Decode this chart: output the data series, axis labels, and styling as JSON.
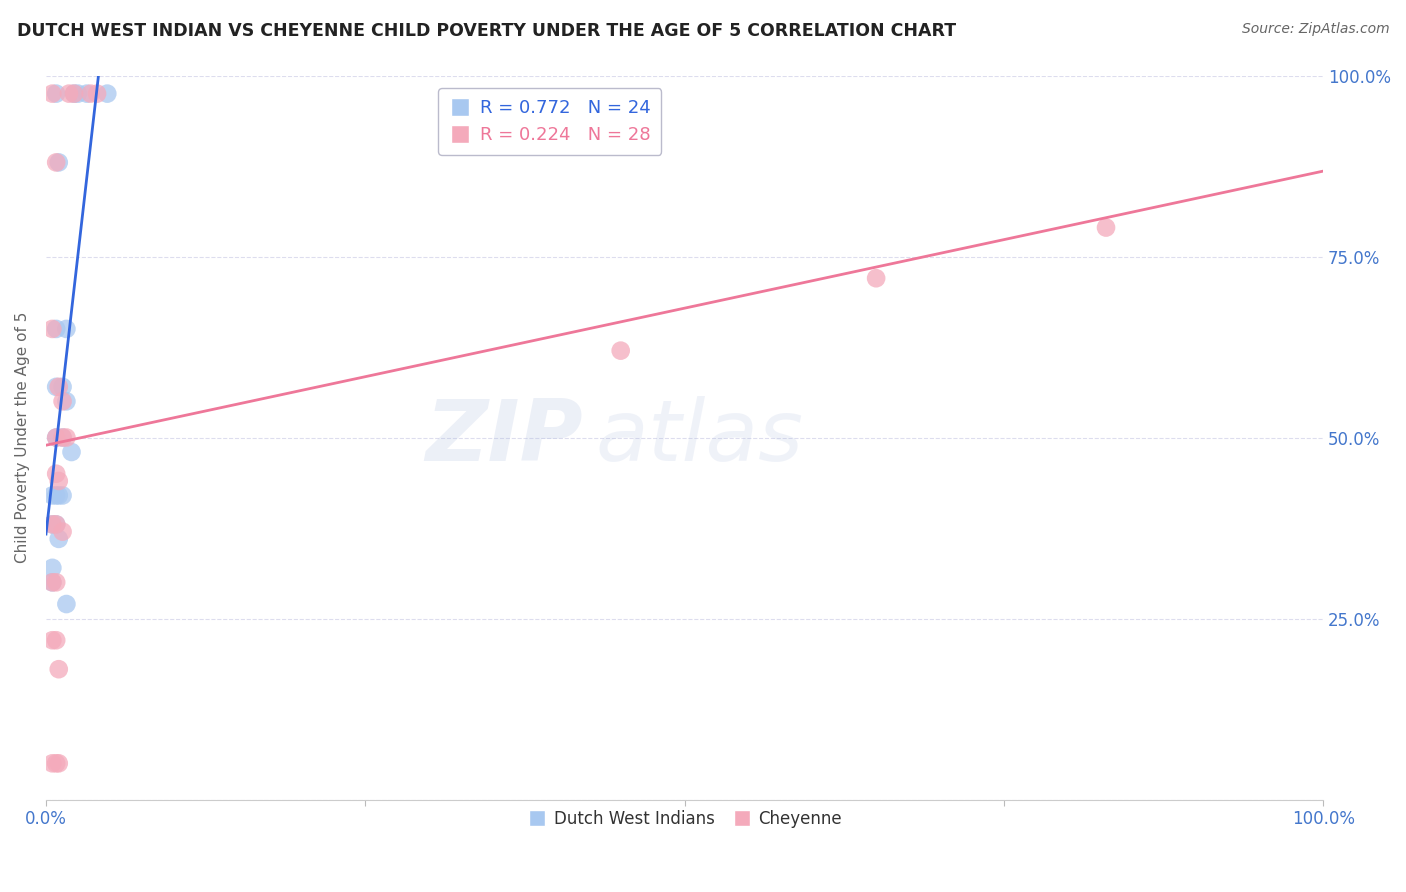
{
  "title": "DUTCH WEST INDIAN VS CHEYENNE CHILD POVERTY UNDER THE AGE OF 5 CORRELATION CHART",
  "source": "Source: ZipAtlas.com",
  "ylabel": "Child Poverty Under the Age of 5",
  "xlim": [
    0,
    1
  ],
  "ylim": [
    0,
    1
  ],
  "blue_R": "0.772",
  "blue_N": "24",
  "pink_R": "0.224",
  "pink_N": "28",
  "blue_color": "#A8C8F0",
  "pink_color": "#F4AABB",
  "blue_line_color": "#3366DD",
  "pink_line_color": "#EE7799",
  "background_color": "#FFFFFF",
  "grid_color": "#DDDDEE",
  "title_color": "#222222",
  "source_color": "#666666",
  "axis_label_color": "#4477CC",
  "ylabel_color": "#666666",
  "blue_scatter": [
    [
      0.008,
      0.975
    ],
    [
      0.022,
      0.975
    ],
    [
      0.025,
      0.975
    ],
    [
      0.032,
      0.975
    ],
    [
      0.048,
      0.975
    ],
    [
      0.01,
      0.88
    ],
    [
      0.008,
      0.65
    ],
    [
      0.016,
      0.65
    ],
    [
      0.008,
      0.57
    ],
    [
      0.013,
      0.57
    ],
    [
      0.016,
      0.55
    ],
    [
      0.008,
      0.5
    ],
    [
      0.013,
      0.5
    ],
    [
      0.02,
      0.48
    ],
    [
      0.005,
      0.42
    ],
    [
      0.008,
      0.42
    ],
    [
      0.01,
      0.42
    ],
    [
      0.013,
      0.42
    ],
    [
      0.005,
      0.38
    ],
    [
      0.008,
      0.38
    ],
    [
      0.01,
      0.36
    ],
    [
      0.005,
      0.32
    ],
    [
      0.005,
      0.3
    ],
    [
      0.016,
      0.27
    ]
  ],
  "pink_scatter": [
    [
      0.005,
      0.975
    ],
    [
      0.018,
      0.975
    ],
    [
      0.022,
      0.975
    ],
    [
      0.035,
      0.975
    ],
    [
      0.04,
      0.975
    ],
    [
      0.008,
      0.88
    ],
    [
      0.005,
      0.65
    ],
    [
      0.01,
      0.57
    ],
    [
      0.013,
      0.55
    ],
    [
      0.008,
      0.5
    ],
    [
      0.013,
      0.5
    ],
    [
      0.016,
      0.5
    ],
    [
      0.008,
      0.45
    ],
    [
      0.01,
      0.44
    ],
    [
      0.005,
      0.38
    ],
    [
      0.008,
      0.38
    ],
    [
      0.013,
      0.37
    ],
    [
      0.005,
      0.3
    ],
    [
      0.008,
      0.3
    ],
    [
      0.005,
      0.22
    ],
    [
      0.008,
      0.22
    ],
    [
      0.01,
      0.18
    ],
    [
      0.005,
      0.05
    ],
    [
      0.008,
      0.05
    ],
    [
      0.01,
      0.05
    ],
    [
      0.45,
      0.62
    ],
    [
      0.65,
      0.72
    ],
    [
      0.83,
      0.79
    ]
  ],
  "watermark_line1": "ZIP",
  "watermark_line2": "atlas",
  "watermark_color": "#AABBDD",
  "watermark_alpha": 0.18
}
